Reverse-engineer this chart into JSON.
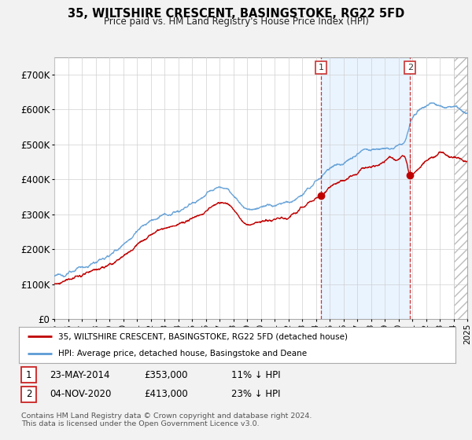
{
  "title": "35, WILTSHIRE CRESCENT, BASINGSTOKE, RG22 5FD",
  "subtitle": "Price paid vs. HM Land Registry's House Price Index (HPI)",
  "legend_line1": "35, WILTSHIRE CRESCENT, BASINGSTOKE, RG22 5FD (detached house)",
  "legend_line2": "HPI: Average price, detached house, Basingstoke and Deane",
  "annotation1_date": "23-MAY-2014",
  "annotation1_price": "£353,000",
  "annotation1_note": "11% ↓ HPI",
  "annotation1_year": 2014.38,
  "annotation1_value": 353000,
  "annotation2_date": "04-NOV-2020",
  "annotation2_price": "£413,000",
  "annotation2_note": "23% ↓ HPI",
  "annotation2_year": 2020.84,
  "annotation2_value": 413000,
  "footer": "Contains HM Land Registry data © Crown copyright and database right 2024.\nThis data is licensed under the Open Government Licence v3.0.",
  "hpi_color": "#5b9bd5",
  "price_color": "#c00000",
  "background_color": "#f2f2f2",
  "plot_bg_color": "#ffffff",
  "shade_color": "#ddeeff",
  "hatch_color": "#cccccc",
  "vline_color": "#cc0000",
  "ylim": [
    0,
    750000
  ],
  "yticks": [
    0,
    100000,
    200000,
    300000,
    400000,
    500000,
    600000,
    700000
  ],
  "ytick_labels": [
    "£0",
    "£100K",
    "£200K",
    "£300K",
    "£400K",
    "£500K",
    "£600K",
    "£700K"
  ],
  "xmin": 1995,
  "xmax": 2025
}
